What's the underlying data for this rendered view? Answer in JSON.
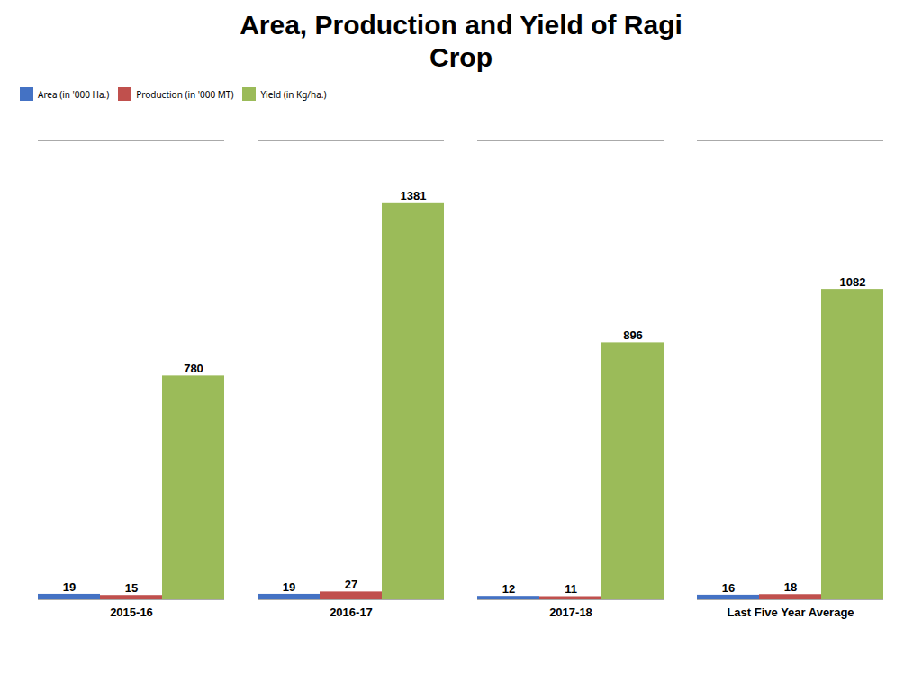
{
  "chart_data": {
    "type": "bar",
    "title": "Area, Production and Yield of Ragi\nCrop",
    "categories": [
      "2015-16",
      "2016-17",
      "2017-18",
      "Last Five Year Average"
    ],
    "series": [
      {
        "name": "Area (in '000 Ha.)",
        "color": "#4472C4",
        "values": [
          19,
          19,
          12,
          16
        ]
      },
      {
        "name": "Production (in '000 MT)",
        "color": "#C0504D",
        "values": [
          15,
          27,
          11,
          18
        ]
      },
      {
        "name": "Yield (in Kg/ha.)",
        "color": "#9BBB59",
        "values": [
          780,
          1381,
          896,
          1082
        ]
      }
    ],
    "ylim": [
      0,
      1600
    ],
    "yticks": [],
    "grid": false,
    "legend": "top",
    "data_labels": true,
    "tick_labels": "x"
  }
}
